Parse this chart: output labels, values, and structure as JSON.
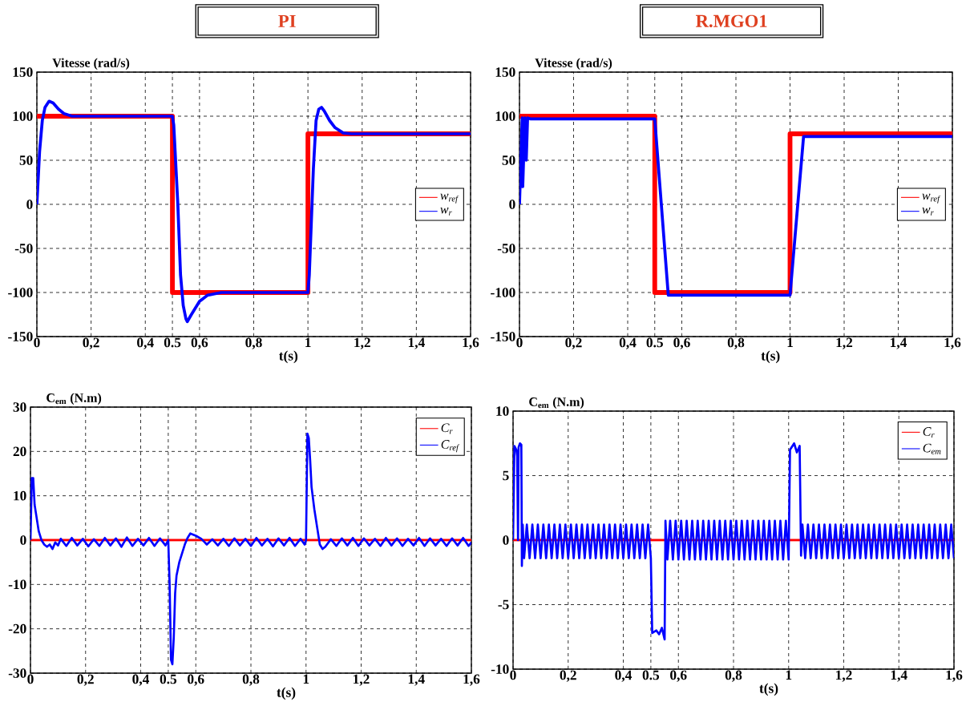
{
  "chart_data": [
    {
      "type": "line",
      "title": "PI",
      "ylabel": "Vitesse (rad/s)",
      "xlabel": "t(s)",
      "xlim": [
        0,
        1.6
      ],
      "ylim": [
        -150,
        150
      ],
      "xticks": [
        0,
        {
          "value": 0.2,
          "label": "0,2"
        },
        {
          "value": 0.4,
          "label": "0,4"
        },
        0.5,
        {
          "value": 0.6,
          "label": "0,6"
        },
        {
          "value": 0.8,
          "label": "0,8"
        },
        1,
        {
          "value": 1.2,
          "label": "1,2"
        },
        {
          "value": 1.4,
          "label": "1,4"
        },
        {
          "value": 1.6,
          "label": "1,6"
        }
      ],
      "yticks": [
        -150,
        -100,
        -50,
        0,
        50,
        100,
        150
      ],
      "grid": true,
      "legend": "right",
      "series": [
        {
          "name": "w$_{ref}$",
          "color": "#ff0000",
          "x": [
            0,
            0.5,
            0.5,
            1,
            1,
            1.6
          ],
          "values": [
            100,
            100,
            -100,
            -100,
            80,
            80
          ]
        },
        {
          "name": "w$_{r}$",
          "color": "#0000ff",
          "x": [
            0,
            0.01,
            0.02,
            0.03,
            0.045,
            0.06,
            0.08,
            0.1,
            0.13,
            0.5,
            0.505,
            0.52,
            0.53,
            0.54,
            0.55,
            0.555,
            0.57,
            0.6,
            0.63,
            0.68,
            1.0,
            1.005,
            1.02,
            1.03,
            1.04,
            1.05,
            1.06,
            1.08,
            1.1,
            1.13,
            1.16,
            1.6
          ],
          "values": [
            0,
            60,
            95,
            110,
            117,
            115,
            108,
            103,
            100,
            100,
            90,
            0,
            -80,
            -115,
            -130,
            -133,
            -125,
            -110,
            -103,
            -100,
            -100,
            -80,
            40,
            95,
            108,
            110,
            106,
            95,
            87,
            81,
            80,
            80
          ]
        }
      ]
    },
    {
      "type": "line",
      "title": "R.MGO1",
      "ylabel": "Vitesse (rad/s)",
      "xlabel": "t(s)",
      "xlim": [
        0,
        1.6
      ],
      "ylim": [
        -150,
        150
      ],
      "xticks": [
        0,
        {
          "value": 0.2,
          "label": "0,2"
        },
        {
          "value": 0.4,
          "label": "0,4"
        },
        0.5,
        {
          "value": 0.6,
          "label": "0,6"
        },
        {
          "value": 0.8,
          "label": "0,8"
        },
        1,
        {
          "value": 1.2,
          "label": "1,2"
        },
        {
          "value": 1.4,
          "label": "1,4"
        },
        {
          "value": 1.6,
          "label": "1,6"
        }
      ],
      "yticks": [
        -150,
        -100,
        -50,
        0,
        50,
        100,
        150
      ],
      "grid": true,
      "legend": "right",
      "series": [
        {
          "name": "w$_{ref}$",
          "color": "#ff0000",
          "x": [
            0,
            0.5,
            0.5,
            1,
            1,
            1.6
          ],
          "values": [
            100,
            100,
            -100,
            -100,
            80,
            80
          ]
        },
        {
          "name": "w$_{r}$",
          "color": "#0000ff",
          "x": [
            0,
            0.01,
            0.012,
            0.02,
            0.025,
            0.03,
            0.04,
            0.5,
            0.55,
            1.0,
            1.05,
            1.6
          ],
          "values": [
            0,
            98,
            20,
            98,
            50,
            98,
            97,
            97,
            -103,
            -103,
            77,
            77
          ]
        }
      ]
    },
    {
      "type": "line",
      "ylabel": "C$_{em}$ (N.m)",
      "xlabel": "t(s)",
      "xlim": [
        0,
        1.6
      ],
      "ylim": [
        -30,
        30
      ],
      "xticks": [
        0,
        {
          "value": 0.2,
          "label": "0,2"
        },
        {
          "value": 0.4,
          "label": "0,4"
        },
        0.5,
        {
          "value": 0.6,
          "label": "0,6"
        },
        {
          "value": 0.8,
          "label": "0,8"
        },
        1,
        {
          "value": 1.2,
          "label": "1,2"
        },
        {
          "value": 1.4,
          "label": "1,4"
        },
        {
          "value": 1.6,
          "label": "1,6"
        }
      ],
      "yticks": [
        -30,
        -20,
        -10,
        0,
        10,
        20,
        30
      ],
      "grid": true,
      "legend": "top right",
      "series": [
        {
          "name": "C$_{r}$",
          "color": "#ff0000",
          "x": [
            0,
            1.6
          ],
          "values": [
            0,
            0
          ]
        },
        {
          "name": "C$_{ref}$",
          "color": "#0000ff",
          "x": [
            0,
            0.005,
            0.01,
            0.015,
            0.02,
            0.025,
            0.03,
            0.04,
            0.05,
            0.06,
            0.07,
            0.08,
            0.09,
            0.1,
            0.11,
            0.13,
            0.15,
            0.17,
            0.19,
            0.21,
            0.23,
            0.25,
            0.27,
            0.29,
            0.31,
            0.33,
            0.35,
            0.37,
            0.39,
            0.41,
            0.43,
            0.45,
            0.47,
            0.49,
            0.5,
            0.505,
            0.51,
            0.515,
            0.52,
            0.525,
            0.53,
            0.54,
            0.55,
            0.56,
            0.57,
            0.58,
            0.6,
            0.62,
            0.64,
            0.66,
            0.68,
            0.7,
            0.72,
            0.74,
            0.76,
            0.78,
            0.8,
            0.82,
            0.84,
            0.86,
            0.88,
            0.9,
            0.92,
            0.94,
            0.96,
            0.98,
            0.995,
            1.0,
            1.005,
            1.01,
            1.015,
            1.02,
            1.03,
            1.04,
            1.05,
            1.06,
            1.07,
            1.09,
            1.11,
            1.13,
            1.15,
            1.17,
            1.19,
            1.21,
            1.23,
            1.25,
            1.27,
            1.29,
            1.31,
            1.33,
            1.35,
            1.37,
            1.39,
            1.41,
            1.43,
            1.45,
            1.47,
            1.49,
            1.51,
            1.53,
            1.55,
            1.57,
            1.59,
            1.6
          ],
          "values": [
            0,
            14,
            14,
            8,
            6,
            4,
            2,
            0,
            -1,
            -1.5,
            -1,
            -2,
            -0.5,
            -1.2,
            0.3,
            -1.3,
            0.5,
            -1.2,
            0.3,
            -1.4,
            0.2,
            -1.3,
            0.5,
            -1.2,
            0.4,
            -1.5,
            0.6,
            -1.3,
            0.3,
            -1.2,
            0.5,
            -1.3,
            0.4,
            -1.2,
            0,
            -10,
            -27,
            -28,
            -22,
            -12,
            -8,
            -5,
            -3,
            -1,
            0.5,
            1.5,
            1,
            0.3,
            -1,
            0.2,
            -1.2,
            0.3,
            -1.3,
            0.4,
            -1.2,
            0.3,
            -1.3,
            0.5,
            -1.2,
            0.3,
            -1.4,
            0.4,
            -1.2,
            0.5,
            -1.3,
            0.3,
            -1,
            0,
            24,
            23,
            18,
            12,
            7,
            3,
            -1,
            -2,
            -1.5,
            0.2,
            -1.3,
            0.4,
            -1.2,
            0.5,
            -1.3,
            0.4,
            -1.2,
            0.3,
            -1.3,
            0.5,
            -1.2,
            0.4,
            -1.3,
            0.3,
            -1.2,
            0.5,
            -1.3,
            0.4,
            -1.2,
            0.3,
            -1.3,
            0.4,
            -1.2,
            0.5,
            -1.3,
            -0.5
          ]
        }
      ]
    },
    {
      "type": "line",
      "ylabel": "C$_{em}$ (N.m)",
      "xlabel": "t(s)",
      "xlim": [
        0,
        1.6
      ],
      "ylim": [
        -10,
        10
      ],
      "xticks": [
        0,
        {
          "value": 0.2,
          "label": "0,2"
        },
        {
          "value": 0.4,
          "label": "0,4"
        },
        0.5,
        {
          "value": 0.6,
          "label": "0,6"
        },
        {
          "value": 0.8,
          "label": "0,8"
        },
        1,
        {
          "value": 1.2,
          "label": "1,2"
        },
        {
          "value": 1.4,
          "label": "1,4"
        },
        {
          "value": 1.6,
          "label": "1,6"
        }
      ],
      "yticks": [
        -10,
        -5,
        0,
        5,
        10
      ],
      "grid": true,
      "legend": "top right",
      "series": [
        {
          "name": "C$_{r}$",
          "color": "#ff0000",
          "x": [
            0,
            1.6
          ],
          "values": [
            0,
            0
          ]
        },
        {
          "name": "C$_{em}$",
          "color": "#0000ff",
          "x": [
            0,
            0.005,
            0.012,
            0.015,
            0.018,
            0.02,
            0.025,
            0.03,
            0.032,
            0.035,
            0.04,
            0.05,
            0.06,
            0.07,
            0.08,
            0.09,
            0.1,
            0.11,
            0.12,
            0.13,
            0.14,
            0.15,
            0.16,
            0.17,
            0.18,
            0.19,
            0.2,
            0.21,
            0.22,
            0.23,
            0.24,
            0.25,
            0.26,
            0.27,
            0.28,
            0.29,
            0.3,
            0.31,
            0.32,
            0.33,
            0.34,
            0.35,
            0.36,
            0.37,
            0.38,
            0.39,
            0.4,
            0.41,
            0.42,
            0.43,
            0.44,
            0.45,
            0.46,
            0.47,
            0.48,
            0.49,
            0.5,
            0.505,
            0.52,
            0.53,
            0.54,
            0.55,
            0.553,
            0.56,
            0.57,
            0.58,
            0.59,
            0.6,
            0.61,
            0.62,
            0.63,
            0.64,
            0.65,
            0.66,
            0.67,
            0.68,
            0.69,
            0.7,
            0.71,
            0.72,
            0.73,
            0.74,
            0.75,
            0.76,
            0.77,
            0.78,
            0.79,
            0.8,
            0.81,
            0.82,
            0.83,
            0.84,
            0.85,
            0.86,
            0.87,
            0.88,
            0.89,
            0.9,
            0.91,
            0.92,
            0.93,
            0.94,
            0.95,
            0.96,
            0.97,
            0.98,
            0.99,
            1.0,
            1.005,
            1.02,
            1.03,
            1.04,
            1.045,
            1.05,
            1.06,
            1.07,
            1.08,
            1.09,
            1.1,
            1.11,
            1.12,
            1.13,
            1.14,
            1.15,
            1.16,
            1.17,
            1.18,
            1.19,
            1.2,
            1.21,
            1.22,
            1.23,
            1.24,
            1.25,
            1.26,
            1.27,
            1.28,
            1.29,
            1.3,
            1.31,
            1.32,
            1.33,
            1.34,
            1.35,
            1.36,
            1.37,
            1.38,
            1.39,
            1.4,
            1.41,
            1.42,
            1.43,
            1.44,
            1.45,
            1.46,
            1.47,
            1.48,
            1.49,
            1.5,
            1.51,
            1.52,
            1.53,
            1.54,
            1.55,
            1.56,
            1.57,
            1.58,
            1.59,
            1.6
          ],
          "values": [
            0,
            7.3,
            7,
            6.5,
            0,
            7.2,
            7.5,
            7.4,
            -2,
            1.2,
            -1.4,
            1.2,
            -1.4,
            1.2,
            -1.4,
            1.2,
            -1.4,
            1.2,
            -1.4,
            1.2,
            -1.4,
            1.2,
            -1.4,
            1.2,
            -1.4,
            1.2,
            -1.4,
            1.2,
            -1.4,
            1.2,
            -1.4,
            1.2,
            -1.4,
            1.2,
            -1.4,
            1.2,
            -1.4,
            1.2,
            -1.4,
            1.2,
            -1.4,
            1.2,
            -1.4,
            1.2,
            -1.4,
            1.2,
            -1.4,
            1.2,
            -1.4,
            1.2,
            -1.4,
            1.2,
            -1.4,
            1.2,
            -1.4,
            1.2,
            -1.4,
            -7.2,
            -7,
            -7.3,
            -6.8,
            -7.7,
            1.5,
            -1.5,
            1.5,
            -1.5,
            1.5,
            -1.5,
            1.5,
            -1.5,
            1.5,
            -1.5,
            1.5,
            -1.5,
            1.5,
            -1.5,
            1.5,
            -1.5,
            1.5,
            -1.5,
            1.5,
            -1.5,
            1.5,
            -1.5,
            1.5,
            -1.5,
            1.5,
            -1.5,
            1.5,
            -1.5,
            1.5,
            -1.5,
            1.5,
            -1.5,
            1.5,
            -1.5,
            1.5,
            -1.5,
            1.5,
            -1.5,
            1.5,
            -1.5,
            1.5,
            -1.5,
            1.5,
            -1.5,
            1.5,
            -1.5,
            7,
            7.5,
            6.8,
            7.3,
            -1.2,
            1.2,
            -1.4,
            1.2,
            -1.4,
            1.2,
            -1.4,
            1.2,
            -1.4,
            1.2,
            -1.4,
            1.2,
            -1.4,
            1.2,
            -1.4,
            1.2,
            -1.4,
            1.2,
            -1.4,
            1.2,
            -1.4,
            1.2,
            -1.4,
            1.2,
            -1.4,
            1.2,
            -1.4,
            1.2,
            -1.4,
            1.2,
            -1.4,
            1.2,
            -1.4,
            1.2,
            -1.4,
            1.2,
            -1.4,
            1.2,
            -1.4,
            1.2,
            -1.4,
            1.2,
            -1.4,
            1.2,
            -1.4,
            1.2,
            -1.4,
            1.2,
            -1.4,
            1.2,
            -1.4,
            1.2,
            -1.4,
            1.2,
            -1.4,
            1.2,
            -1.4
          ]
        }
      ]
    }
  ]
}
